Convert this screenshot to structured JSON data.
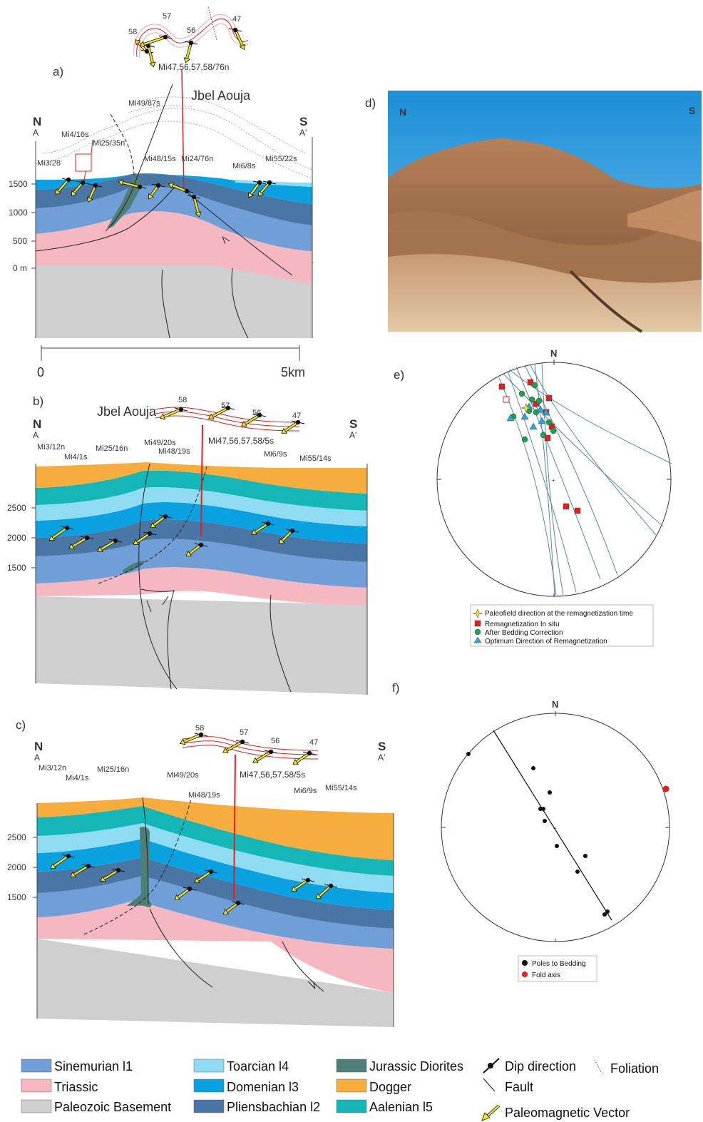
{
  "panels": {
    "a": {
      "letter": "a)",
      "title": "Jbel Aouja",
      "north": "N",
      "north_pt": "A",
      "south": "S",
      "south_pt": "A'",
      "y_ticks": [
        "1500",
        "1000",
        "500",
        "0 m"
      ],
      "scale_start": "0",
      "scale_end": "5km",
      "site_labels": [
        "Mi3/28",
        "Mi4/16s",
        "Mi25/35n",
        "Mi49/87s",
        "Mi48/15s",
        "Mi24/76n",
        "Mi6/8s",
        "Mi55/22s"
      ],
      "inset_sites": [
        "58",
        "57",
        "56",
        "47"
      ],
      "inset_caption": "Mi47,56,57,58/76n"
    },
    "b": {
      "letter": "b)",
      "title": "Jbel Aouja",
      "north": "N",
      "north_pt": "A",
      "south": "S",
      "south_pt": "A'",
      "y_ticks": [
        "2500",
        "2000",
        "1500"
      ],
      "site_labels": [
        "Mi3/12n",
        "Mi4/1s",
        "Mi25/16n",
        "Mi49/20s",
        "Mi48/19s",
        "Mi6/9s",
        "Mi55/14s"
      ],
      "inset_sites": [
        "58",
        "57",
        "56",
        "47"
      ],
      "inset_caption": "Mi47,56,57,58/5s"
    },
    "c": {
      "letter": "c)",
      "north": "N",
      "north_pt": "A",
      "south": "S",
      "south_pt": "A'",
      "y_ticks": [
        "2500",
        "2000",
        "1500"
      ],
      "site_labels": [
        "Mi3/12n",
        "Mi4/1s",
        "Mi25/16n",
        "Mi49/20s",
        "Mi48/19s",
        "Mi6/9s",
        "Mi55/14s"
      ],
      "inset_sites": [
        "58",
        "57",
        "56",
        "47"
      ],
      "inset_caption": "Mi47,56,57,58/5s"
    },
    "d": {
      "letter": "d)",
      "north": "N",
      "south": "S"
    },
    "e": {
      "letter": "e)",
      "north": "N",
      "legend": [
        "Paleofield direction at the remagnetization time",
        "Remagnetization In situ",
        "After Bedding Correction",
        "Optimum Direction of Remagnetization"
      ]
    },
    "f": {
      "letter": "f)",
      "north": "N",
      "legend": [
        "Poles to Bedding",
        "Fold axis"
      ]
    }
  },
  "legend": {
    "units": [
      "Sinemurian l1",
      "Triassic",
      "Paleozoic Basement",
      "Toarcian l4",
      "Domenian l3",
      "Pliensbachian l2",
      "Jurassic Diorites",
      "Dogger",
      "Aalenian l5"
    ],
    "symbols": [
      "Dip direction",
      "Fault",
      "Paleomagnetic Vector",
      "Foliation"
    ]
  },
  "colors": {
    "sinemurian": "#6f9fd6",
    "triassic": "#f5b8c0",
    "basement": "#cfcfcf",
    "toarcian": "#8fdcf2",
    "domenian": "#0aa1e0",
    "pliensbachian": "#4a76a6",
    "diorite": "#4e7e78",
    "dogger": "#f6ad3e",
    "aalenian": "#14b6b8",
    "vector": "#f2ea1a",
    "red": "#e02020"
  }
}
